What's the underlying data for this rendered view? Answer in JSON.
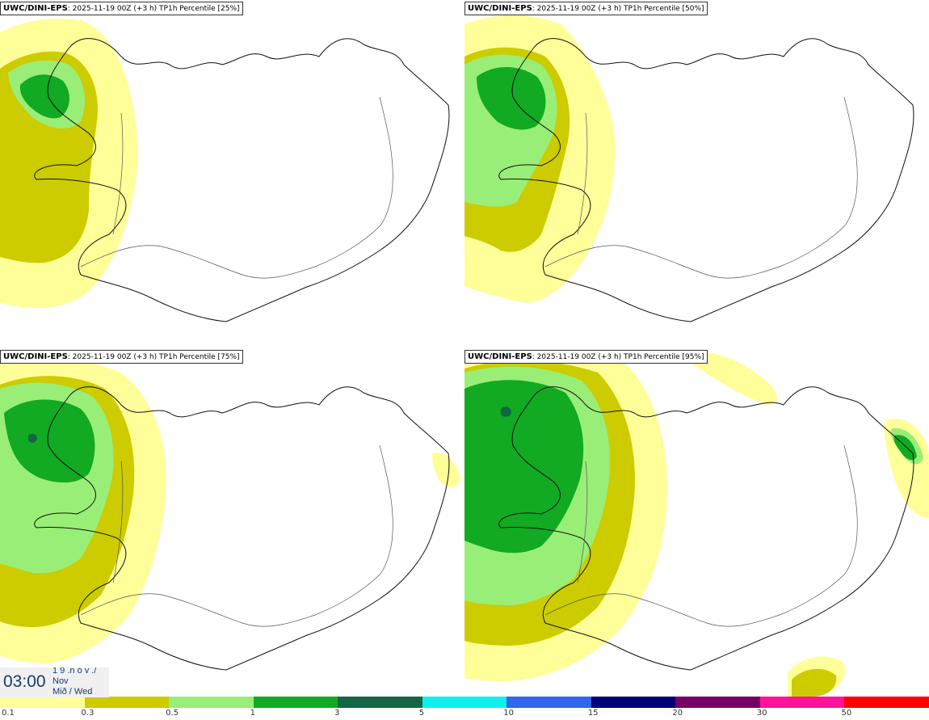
{
  "panels": [
    {
      "model": "UWC/DINI-EPS",
      "run": "2025-11-19 00Z (+3 h)",
      "label": "TP1h Percentile [25%]",
      "percentile": 25
    },
    {
      "model": "UWC/DINI-EPS",
      "run": "2025-11-19 00Z (+3 h)",
      "label": "TP1h Percentile [50%]",
      "percentile": 50
    },
    {
      "model": "UWC/DINI-EPS",
      "run": "2025-11-19 00Z (+3 h)",
      "label": "TP1h Percentile [75%]",
      "percentile": 75
    },
    {
      "model": "UWC/DINI-EPS",
      "run": "2025-11-19 00Z (+3 h)",
      "label": "TP1h Percentile [95%]",
      "percentile": 95
    }
  ],
  "clock": {
    "time": "03:00",
    "day": "1 9 .n ó v ./",
    "month": "Nov",
    "weekday": "Mið / Wed"
  },
  "legend": {
    "ticks": [
      "0.1",
      "0.3",
      "0.5",
      "1",
      "3",
      "5",
      "10",
      "15",
      "20",
      "30",
      "50"
    ],
    "colors": [
      "#ffff99",
      "#cccc00",
      "#99ee77",
      "#11aa22",
      "#116644",
      "#11eeee",
      "#3366ee",
      "#000077",
      "#770066",
      "#ff1199",
      "#ff0000"
    ]
  }
}
